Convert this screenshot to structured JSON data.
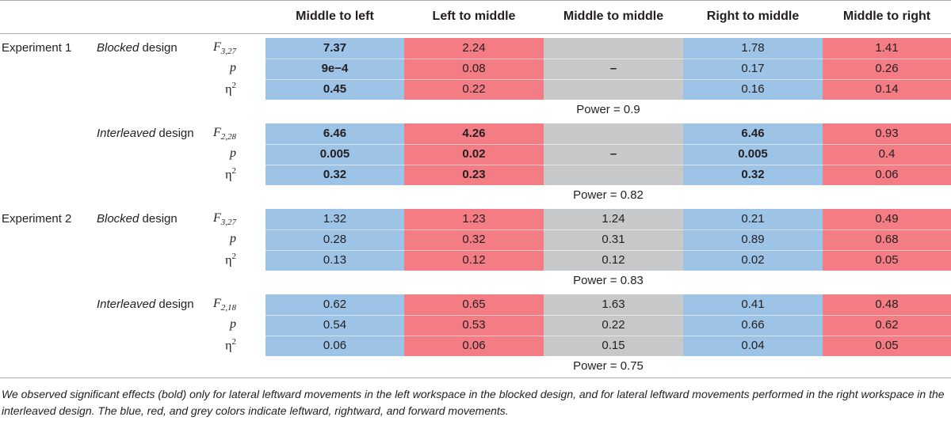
{
  "columns": [
    "Middle to left",
    "Left to middle",
    "Middle to middle",
    "Right to middle",
    "Middle to right"
  ],
  "column_colors": [
    "blue",
    "red",
    "grey",
    "blue",
    "red"
  ],
  "colors": {
    "blue": "#9dc3e6",
    "red": "#f47c84",
    "grey": "#c7c8ca",
    "rule": "#a7a9ac"
  },
  "stat_labels": {
    "p": "p",
    "eta": "η"
  },
  "blocks": [
    {
      "experiment": "Experiment 1",
      "design_italic": "Blocked",
      "design_rest": " design",
      "f_letter": "F",
      "f_sub": "3,27",
      "rows": [
        [
          {
            "v": "7.37",
            "b": true
          },
          {
            "v": "2.24",
            "b": false
          },
          {
            "v": "",
            "b": false
          },
          {
            "v": "1.78",
            "b": false
          },
          {
            "v": "1.41",
            "b": false
          }
        ],
        [
          {
            "v": "9e−4",
            "b": true
          },
          {
            "v": "0.08",
            "b": false
          },
          {
            "v": "–",
            "b": true
          },
          {
            "v": "0.17",
            "b": false
          },
          {
            "v": "0.26",
            "b": false
          }
        ],
        [
          {
            "v": "0.45",
            "b": true
          },
          {
            "v": "0.22",
            "b": false
          },
          {
            "v": "",
            "b": false
          },
          {
            "v": "0.16",
            "b": false
          },
          {
            "v": "0.14",
            "b": false
          }
        ]
      ],
      "power": "Power = 0.9"
    },
    {
      "experiment": "",
      "design_italic": "Interleaved",
      "design_rest": " design",
      "f_letter": "F",
      "f_sub": "2,28",
      "rows": [
        [
          {
            "v": "6.46",
            "b": true
          },
          {
            "v": "4.26",
            "b": true
          },
          {
            "v": "",
            "b": false
          },
          {
            "v": "6.46",
            "b": true
          },
          {
            "v": "0.93",
            "b": false
          }
        ],
        [
          {
            "v": "0.005",
            "b": true
          },
          {
            "v": "0.02",
            "b": true
          },
          {
            "v": "–",
            "b": true
          },
          {
            "v": "0.005",
            "b": true
          },
          {
            "v": "0.4",
            "b": false
          }
        ],
        [
          {
            "v": "0.32",
            "b": true
          },
          {
            "v": "0.23",
            "b": true
          },
          {
            "v": "",
            "b": false
          },
          {
            "v": "0.32",
            "b": true
          },
          {
            "v": "0.06",
            "b": false
          }
        ]
      ],
      "power": "Power = 0.82"
    },
    {
      "experiment": "Experiment 2",
      "design_italic": "Blocked",
      "design_rest": " design",
      "f_letter": "F",
      "f_sub": "3,27",
      "rows": [
        [
          {
            "v": "1.32",
            "b": false
          },
          {
            "v": "1.23",
            "b": false
          },
          {
            "v": "1.24",
            "b": false
          },
          {
            "v": "0.21",
            "b": false
          },
          {
            "v": "0.49",
            "b": false
          }
        ],
        [
          {
            "v": "0.28",
            "b": false
          },
          {
            "v": "0.32",
            "b": false
          },
          {
            "v": "0.31",
            "b": false
          },
          {
            "v": "0.89",
            "b": false
          },
          {
            "v": "0.68",
            "b": false
          }
        ],
        [
          {
            "v": "0.13",
            "b": false
          },
          {
            "v": "0.12",
            "b": false
          },
          {
            "v": "0.12",
            "b": false
          },
          {
            "v": "0.02",
            "b": false
          },
          {
            "v": "0.05",
            "b": false
          }
        ]
      ],
      "power": "Power = 0.83"
    },
    {
      "experiment": "",
      "design_italic": "Interleaved",
      "design_rest": " design",
      "f_letter": "F",
      "f_sub": "2,18",
      "rows": [
        [
          {
            "v": "0.62",
            "b": false
          },
          {
            "v": "0.65",
            "b": false
          },
          {
            "v": "1.63",
            "b": false
          },
          {
            "v": "0.41",
            "b": false
          },
          {
            "v": "0.48",
            "b": false
          }
        ],
        [
          {
            "v": "0.54",
            "b": false
          },
          {
            "v": "0.53",
            "b": false
          },
          {
            "v": "0.22",
            "b": false
          },
          {
            "v": "0.66",
            "b": false
          },
          {
            "v": "0.62",
            "b": false
          }
        ],
        [
          {
            "v": "0.06",
            "b": false
          },
          {
            "v": "0.06",
            "b": false
          },
          {
            "v": "0.15",
            "b": false
          },
          {
            "v": "0.04",
            "b": false
          },
          {
            "v": "0.05",
            "b": false
          }
        ]
      ],
      "power": "Power = 0.75"
    }
  ],
  "footnote": "We observed significant effects (bold) only for lateral leftward movements in the left workspace in the blocked design, and for lateral leftward movements performed in the right workspace in the interleaved design. The blue, red, and grey colors indicate leftward, rightward, and forward movements."
}
